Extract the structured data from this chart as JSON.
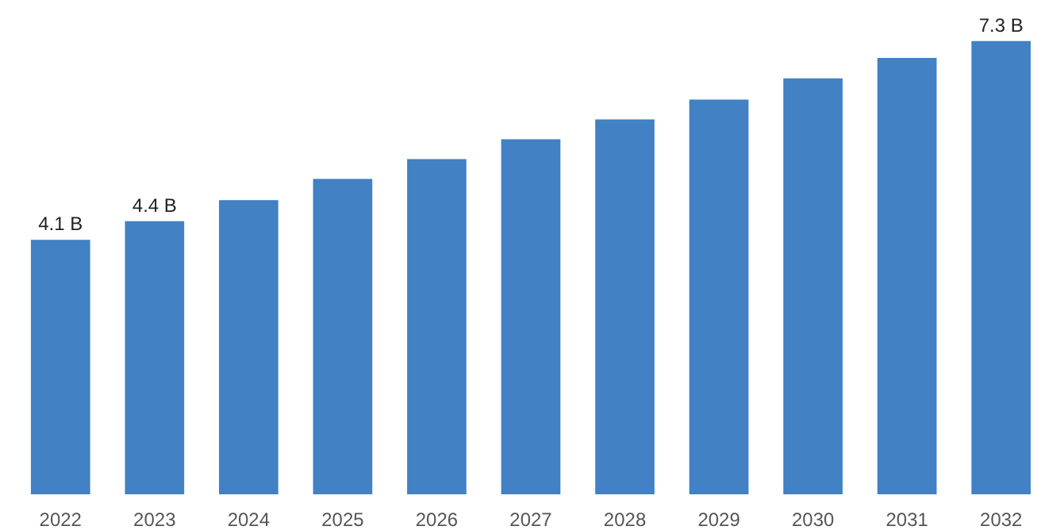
{
  "chart_data": {
    "type": "bar",
    "categories": [
      "2022",
      "2023",
      "2024",
      "2025",
      "2026",
      "2027",
      "2028",
      "2029",
      "2030",
      "2031",
      "2032"
    ],
    "values": [
      4.1,
      4.4,
      4.74,
      5.08,
      5.4,
      5.72,
      6.04,
      6.36,
      6.7,
      7.03,
      7.3
    ],
    "color": "#4181c4",
    "value_labels": [
      "4.1 B",
      "4.4 B",
      null,
      null,
      null,
      null,
      null,
      null,
      null,
      null,
      "7.3 B"
    ],
    "grid": false
  }
}
